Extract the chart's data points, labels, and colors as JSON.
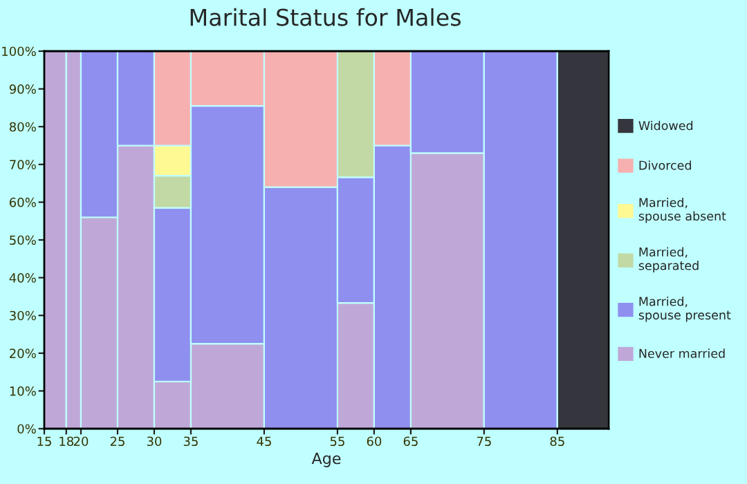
{
  "chart_data": {
    "type": "bar",
    "stacked": true,
    "title": "Marital Status for Males",
    "xlabel": "Age",
    "x": [
      16.5,
      19,
      22.5,
      27.5,
      32.5,
      40,
      50,
      57.5,
      62.5,
      70,
      80,
      88.5
    ],
    "xlim": [
      15,
      92
    ],
    "xticks": [
      15,
      18,
      20,
      25,
      30,
      35,
      45,
      55,
      60,
      65,
      75,
      85
    ],
    "ylim": [
      0,
      100
    ],
    "yticks": [
      {
        "value": 0,
        "label": "0%"
      },
      {
        "value": 10,
        "label": "10%"
      },
      {
        "value": 20,
        "label": "20%"
      },
      {
        "value": 30,
        "label": "30%"
      },
      {
        "value": 40,
        "label": "40%"
      },
      {
        "value": 50,
        "label": "50%"
      },
      {
        "value": 60,
        "label": "60%"
      },
      {
        "value": 70,
        "label": "70%"
      },
      {
        "value": 80,
        "label": "80%"
      },
      {
        "value": 90,
        "label": "90%"
      },
      {
        "value": 100,
        "label": "100%"
      }
    ],
    "legend": "right",
    "series": [
      {
        "name": "Never married",
        "color": "#bfa8d8",
        "values": [
          100,
          100,
          56,
          75,
          12.5,
          22.5,
          null,
          33.3,
          null,
          73,
          null,
          null
        ]
      },
      {
        "name": "Married,\nspouse present",
        "color": "#8f8ff0",
        "values": [
          null,
          null,
          44,
          25,
          46,
          63,
          64,
          33.3,
          75,
          27,
          100,
          null
        ]
      },
      {
        "name": "Married,\nseparated",
        "color": "#c2d9a5",
        "values": [
          null,
          null,
          null,
          null,
          8.5,
          null,
          null,
          33.4,
          null,
          null,
          null,
          null
        ]
      },
      {
        "name": "Married,\nspouse absent",
        "color": "#fff994",
        "values": [
          null,
          null,
          null,
          null,
          8,
          null,
          null,
          null,
          null,
          null,
          null,
          null
        ]
      },
      {
        "name": "Divorced",
        "color": "#f7b0b0",
        "values": [
          null,
          null,
          null,
          null,
          25,
          14.5,
          36,
          null,
          25,
          null,
          null,
          null
        ]
      },
      {
        "name": "Widowed",
        "color": "#35363d",
        "values": [
          null,
          null,
          null,
          null,
          null,
          null,
          null,
          null,
          null,
          null,
          null,
          100
        ]
      }
    ]
  }
}
